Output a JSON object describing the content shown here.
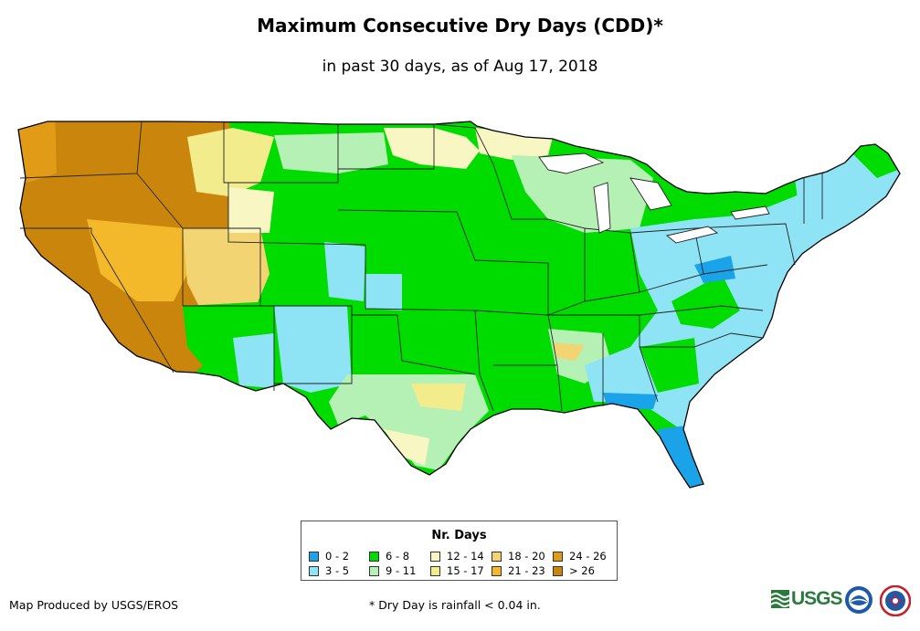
{
  "title": "Maximum Consecutive Dry Days (CDD)*",
  "subtitle": "in past 30 days, as of Aug 17, 2018",
  "legend": {
    "title": "Nr. Days",
    "items": [
      {
        "label": "0 - 2",
        "color": "#1aa3e8"
      },
      {
        "label": "3 - 5",
        "color": "#8ee3f5"
      },
      {
        "label": "6 - 8",
        "color": "#00dc00"
      },
      {
        "label": "9 - 11",
        "color": "#b5f0b5"
      },
      {
        "label": "12 - 14",
        "color": "#f8f7c4"
      },
      {
        "label": "15 - 17",
        "color": "#f3ec8d"
      },
      {
        "label": "18 - 20",
        "color": "#f2d472"
      },
      {
        "label": "21 - 23",
        "color": "#f4b92a"
      },
      {
        "label": "24 - 26",
        "color": "#e29b16"
      },
      {
        "label": "> 26",
        "color": "#c9850c"
      }
    ]
  },
  "credit": "Map Produced by USGS/EROS",
  "footnote": "* Dry Day is rainfall < 0.04 in.",
  "logos": {
    "usgs": "USGS",
    "usgs_icon": "usgs-wave-icon",
    "noaa_icon": "noaa-logo-icon",
    "nws_icon": "nws-logo-icon"
  }
}
